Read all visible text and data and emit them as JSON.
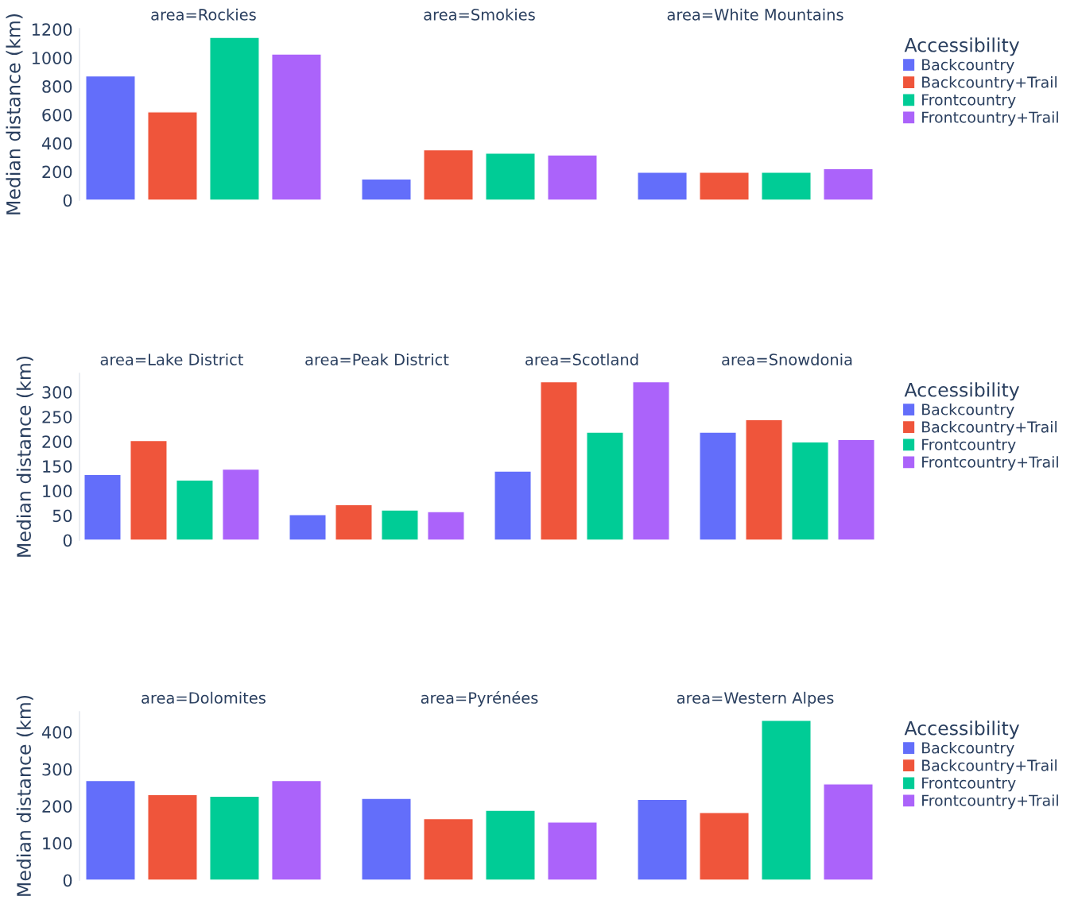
{
  "chart_data": [
    {
      "type": "bar",
      "stacked": true,
      "annotations": [
        "area=Rockies",
        "area=Smokies",
        "area=White Mountains"
      ],
      "ylabel": "Median distance (km)",
      "categories": [
        null,
        null,
        null,
        null,
        null,
        null,
        null,
        null,
        null,
        null,
        null,
        null
      ],
      "ylim": [
        0,
        1205
      ],
      "yticks": [
        0,
        200,
        400,
        600,
        800,
        1000,
        1200
      ],
      "tick_labels": "y",
      "grid": false,
      "legend": "right",
      "legend_title": "Accessibility",
      "series": [
        {
          "name": "Backcountry",
          "color": "#636efa",
          "values": [
            873,
            null,
            null,
            null,
            149,
            null,
            null,
            null,
            197,
            null,
            null,
            null
          ]
        },
        {
          "name": "Backcountry+Trail",
          "color": "#ef553b",
          "values": [
            null,
            620,
            null,
            null,
            null,
            354,
            null,
            null,
            null,
            197,
            null,
            null
          ]
        },
        {
          "name": "Frontcountry",
          "color": "#00cc96",
          "values": [
            null,
            null,
            1143,
            null,
            null,
            null,
            330,
            null,
            null,
            null,
            197,
            null
          ]
        },
        {
          "name": "Frontcountry+Trail",
          "color": "#ab63fa",
          "values": [
            null,
            null,
            null,
            1026,
            null,
            null,
            null,
            318,
            null,
            null,
            null,
            221
          ]
        }
      ]
    },
    {
      "type": "bar",
      "stacked": true,
      "annotations": [
        "area=Lake District",
        "area=Peak District",
        "area=Scotland",
        "area=Snowdonia"
      ],
      "ylabel": "Median distance (km)",
      "categories": [
        null,
        null,
        null,
        null,
        null,
        null,
        null,
        null,
        null,
        null,
        null,
        null,
        null,
        null,
        null,
        null
      ],
      "ylim": [
        0,
        338
      ],
      "yticks": [
        0,
        50,
        100,
        150,
        200,
        250,
        300
      ],
      "tick_labels": "y",
      "grid": false,
      "legend": "right",
      "legend_title": "Accessibility",
      "series": [
        {
          "name": "Backcountry",
          "color": "#636efa",
          "values": [
            133,
            null,
            null,
            null,
            52,
            null,
            null,
            null,
            140,
            null,
            null,
            null,
            219,
            null,
            null,
            null
          ]
        },
        {
          "name": "Backcountry+Trail",
          "color": "#ef553b",
          "values": [
            null,
            202,
            null,
            null,
            null,
            72,
            null,
            null,
            null,
            321,
            null,
            null,
            null,
            244,
            null,
            null
          ]
        },
        {
          "name": "Frontcountry",
          "color": "#00cc96",
          "values": [
            null,
            null,
            122,
            null,
            null,
            null,
            61,
            null,
            null,
            null,
            219,
            null,
            null,
            null,
            199,
            null
          ]
        },
        {
          "name": "Frontcountry+Trail",
          "color": "#ab63fa",
          "values": [
            null,
            null,
            null,
            144,
            null,
            null,
            null,
            58,
            null,
            null,
            null,
            321,
            null,
            null,
            null,
            204
          ]
        }
      ]
    },
    {
      "type": "bar",
      "stacked": true,
      "annotations": [
        "area=Dolomites",
        "area=Pyrénées",
        "area=Western Alpes"
      ],
      "ylabel": "Median distance (km)",
      "categories": [
        null,
        null,
        null,
        null,
        null,
        null,
        null,
        null,
        null,
        null,
        null,
        null
      ],
      "ylim": [
        0,
        455
      ],
      "yticks": [
        0,
        100,
        200,
        300,
        400
      ],
      "tick_labels": "y",
      "grid": false,
      "legend": "right",
      "legend_title": "Accessibility",
      "series": [
        {
          "name": "Backcountry",
          "color": "#636efa",
          "values": [
            269,
            null,
            null,
            null,
            221,
            null,
            null,
            null,
            218,
            null,
            null,
            null
          ]
        },
        {
          "name": "Backcountry+Trail",
          "color": "#ef553b",
          "values": [
            null,
            231,
            null,
            null,
            null,
            166,
            null,
            null,
            null,
            183,
            null,
            null
          ]
        },
        {
          "name": "Frontcountry",
          "color": "#00cc96",
          "values": [
            null,
            null,
            227,
            null,
            null,
            null,
            189,
            null,
            null,
            null,
            432,
            null
          ]
        },
        {
          "name": "Frontcountry+Trail",
          "color": "#ab63fa",
          "values": [
            null,
            null,
            null,
            269,
            null,
            null,
            null,
            157,
            null,
            null,
            null,
            260
          ]
        }
      ]
    }
  ]
}
